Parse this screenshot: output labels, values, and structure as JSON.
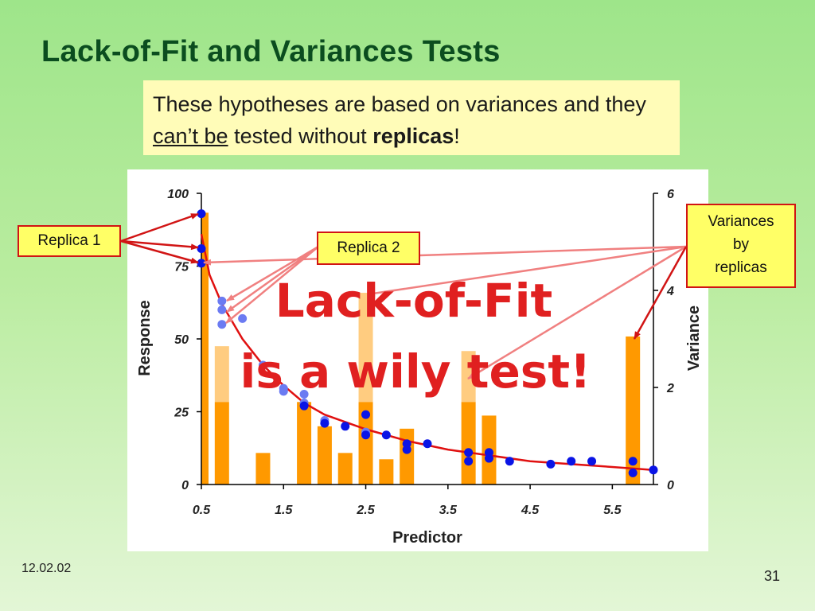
{
  "slide": {
    "title": "Lack-of-Fit and Variances Tests",
    "note_part1": "These hypotheses are based on variances and they ",
    "note_underlined": "can’t be",
    "note_part2": " tested without ",
    "note_bold": "replicas",
    "note_part3": "!",
    "date": "12.02.02",
    "slide_number": "31",
    "overlay_line1": "Lack-of-Fit",
    "overlay_line2": "is a wily test!",
    "overlay_color": "#e02020"
  },
  "callouts": {
    "replica1": "Replica 1",
    "replica2": "Replica 2",
    "variances": [
      "Variances",
      "by",
      "replicas"
    ]
  },
  "chart_data": {
    "type": "bar",
    "xlabel": "Predictor",
    "ylabel": "Response",
    "y2label": "Variance",
    "xlim": [
      0.5,
      6.0
    ],
    "ylim": [
      0,
      100
    ],
    "y2lim": [
      0,
      6
    ],
    "x_tick_labels": [
      "0.5",
      "1.5",
      "2.5",
      "3.5",
      "4.5",
      "5.5"
    ],
    "y_tick_labels": [
      "0",
      "25",
      "50",
      "75",
      "100"
    ],
    "y2_tick_labels": [
      "0",
      "2",
      "4",
      "6"
    ],
    "bar_color": "#ff9900",
    "bar_light_color": "#ffcc80",
    "point_color_replica1": "#0a14e6",
    "point_color_replica2": "#6b7bf2",
    "fit_color": "#e01010",
    "bars": [
      {
        "x": 0.5,
        "variance": 5.6,
        "light_top": 5.6
      },
      {
        "x": 0.75,
        "variance": 1.7,
        "light_top": 2.85
      },
      {
        "x": 1.25,
        "variance": 0.65
      },
      {
        "x": 1.75,
        "variance": 1.7
      },
      {
        "x": 2.0,
        "variance": 1.2
      },
      {
        "x": 2.25,
        "variance": 0.65
      },
      {
        "x": 2.5,
        "variance": 1.7,
        "light_top": 3.95
      },
      {
        "x": 2.75,
        "variance": 0.52
      },
      {
        "x": 3.0,
        "variance": 1.15
      },
      {
        "x": 3.75,
        "variance": 1.7,
        "light_top": 2.75
      },
      {
        "x": 4.0,
        "variance": 1.42
      },
      {
        "x": 5.75,
        "variance": 3.05
      }
    ],
    "replica1_points": [
      {
        "x": 0.5,
        "y": 93
      },
      {
        "x": 0.5,
        "y": 81
      },
      {
        "x": 0.5,
        "y": 76
      },
      {
        "x": 1.75,
        "y": 27
      },
      {
        "x": 2.0,
        "y": 21
      },
      {
        "x": 2.25,
        "y": 20
      },
      {
        "x": 2.5,
        "y": 24
      },
      {
        "x": 2.5,
        "y": 17
      },
      {
        "x": 2.75,
        "y": 17
      },
      {
        "x": 3.0,
        "y": 14
      },
      {
        "x": 3.0,
        "y": 12
      },
      {
        "x": 3.25,
        "y": 14
      },
      {
        "x": 3.75,
        "y": 11
      },
      {
        "x": 3.75,
        "y": 8
      },
      {
        "x": 4.0,
        "y": 11
      },
      {
        "x": 4.0,
        "y": 9
      },
      {
        "x": 4.25,
        "y": 8
      },
      {
        "x": 4.75,
        "y": 7
      },
      {
        "x": 5.0,
        "y": 8
      },
      {
        "x": 5.25,
        "y": 8
      },
      {
        "x": 5.75,
        "y": 8
      },
      {
        "x": 5.75,
        "y": 4
      },
      {
        "x": 6.0,
        "y": 5
      }
    ],
    "replica2_points": [
      {
        "x": 0.75,
        "y": 63
      },
      {
        "x": 0.75,
        "y": 60
      },
      {
        "x": 0.75,
        "y": 55
      },
      {
        "x": 1.0,
        "y": 57
      },
      {
        "x": 1.25,
        "y": 41
      },
      {
        "x": 1.5,
        "y": 33
      },
      {
        "x": 1.5,
        "y": 32
      },
      {
        "x": 1.75,
        "y": 31
      },
      {
        "x": 1.75,
        "y": 28
      },
      {
        "x": 2.0,
        "y": 22
      },
      {
        "x": 2.5,
        "y": 18
      }
    ],
    "fit_curve": [
      {
        "x": 0.5,
        "y": 86
      },
      {
        "x": 0.6,
        "y": 72
      },
      {
        "x": 0.75,
        "y": 62
      },
      {
        "x": 1.0,
        "y": 50
      },
      {
        "x": 1.25,
        "y": 41
      },
      {
        "x": 1.5,
        "y": 34
      },
      {
        "x": 1.75,
        "y": 28
      },
      {
        "x": 2.0,
        "y": 24
      },
      {
        "x": 2.5,
        "y": 19
      },
      {
        "x": 3.0,
        "y": 15
      },
      {
        "x": 3.5,
        "y": 12
      },
      {
        "x": 4.0,
        "y": 10
      },
      {
        "x": 4.5,
        "y": 8
      },
      {
        "x": 5.0,
        "y": 7
      },
      {
        "x": 5.5,
        "y": 6
      },
      {
        "x": 6.0,
        "y": 5
      }
    ]
  }
}
